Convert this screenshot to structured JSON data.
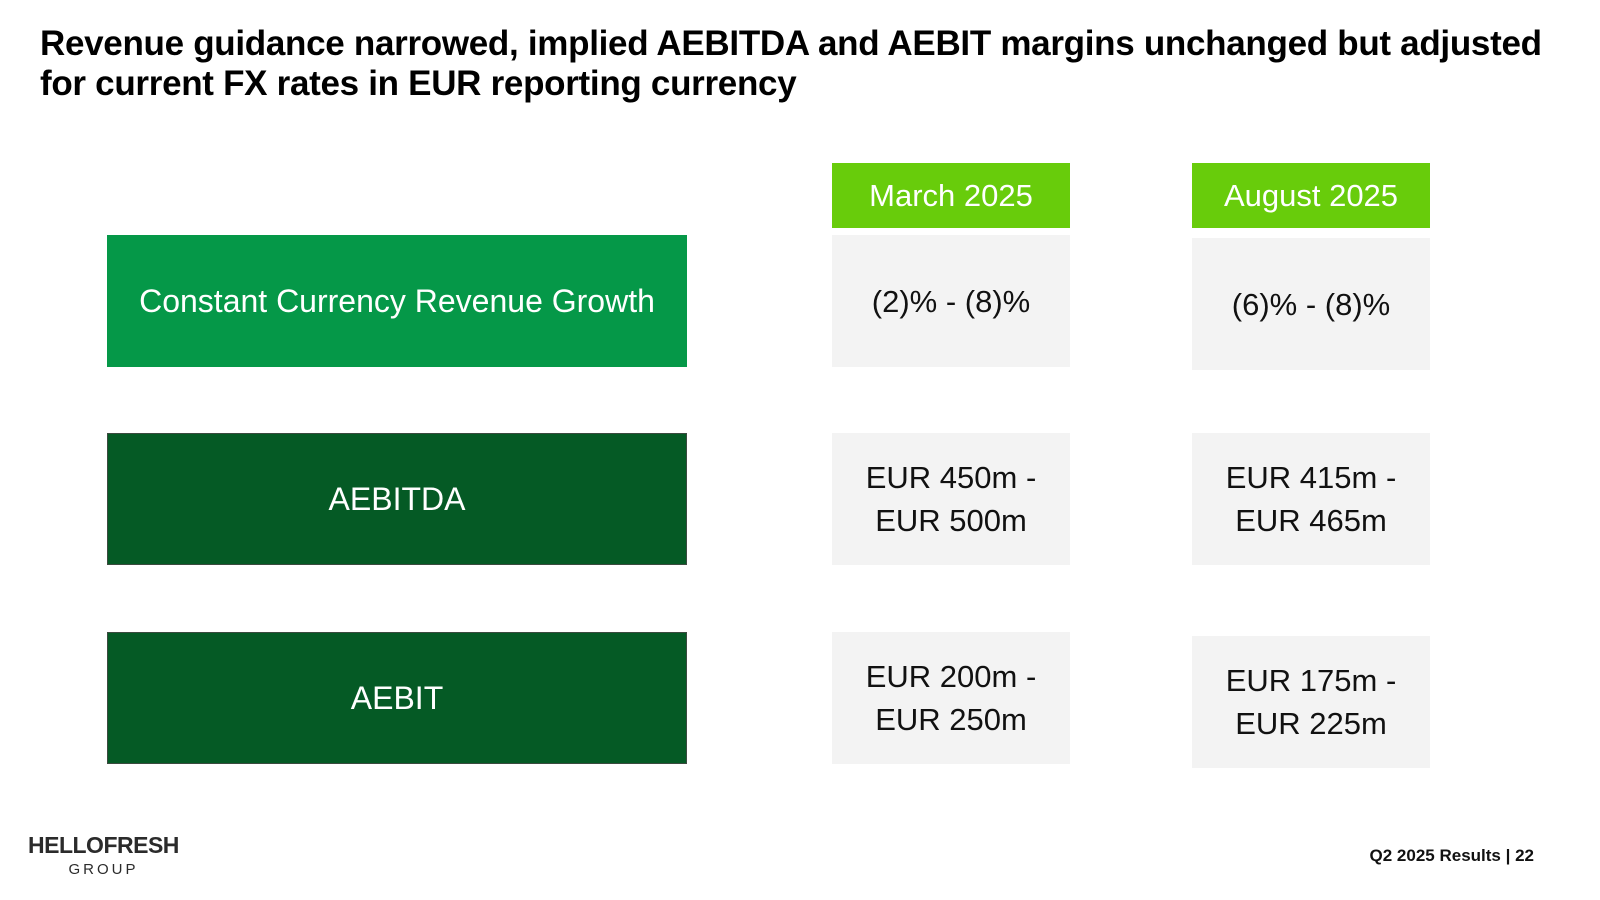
{
  "title": "Revenue guidance narrowed, implied AEBITDA and AEBIT margins unchanged but adjusted for current FX rates in EUR reporting currency",
  "columns": [
    "March 2025",
    "August 2025"
  ],
  "rows": [
    {
      "label": "Constant Currency Revenue Growth",
      "march": [
        "(2)% - (8)%"
      ],
      "august": [
        "(6)% - (8)%"
      ]
    },
    {
      "label": "AEBITDA",
      "march": [
        "EUR 450m -",
        "EUR 500m"
      ],
      "august": [
        "EUR 415m -",
        "EUR 465m"
      ]
    },
    {
      "label": "AEBIT",
      "march": [
        "EUR 200m -",
        "EUR 250m"
      ],
      "august": [
        "EUR 175m -",
        "EUR 225m"
      ]
    }
  ],
  "logo": {
    "main": "HELLOFRESH",
    "sub": "GROUP"
  },
  "footer": {
    "text": "Q2 2025 Results | 22"
  },
  "colors": {
    "header_green": "#68cc0b",
    "label_light_green": "#059848",
    "label_dark_green": "#055a25",
    "value_bg": "#f3f3f3"
  }
}
